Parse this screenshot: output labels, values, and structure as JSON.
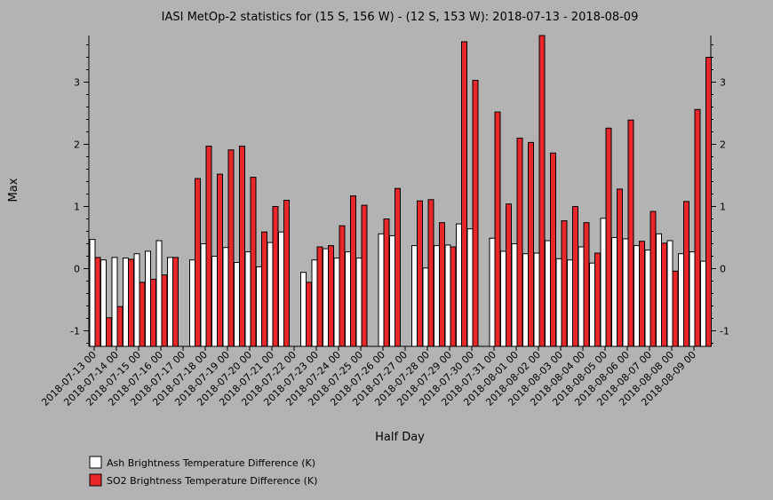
{
  "chart_data": {
    "type": "bar",
    "title": "IASI MetOp-2 statistics for (15 S, 156 W) - (12 S, 153 W): 2018-07-13 - 2018-08-09",
    "xlabel": "Half Day",
    "ylabel": "Max",
    "ylim": [
      -1.25,
      3.75
    ],
    "yticks": [
      -1,
      0,
      1,
      2,
      3
    ],
    "grid": false,
    "legend_position": "bottom-left",
    "x_tick_labels": [
      "2018-07-13 00",
      "2018-07-14 00",
      "2018-07-15 00",
      "2018-07-16 00",
      "2018-07-17 00",
      "2018-07-18 00",
      "2018-07-19 00",
      "2018-07-20 00",
      "2018-07-21 00",
      "2018-07-22 00",
      "2018-07-23 00",
      "2018-07-24 00",
      "2018-07-25 00",
      "2018-07-26 00",
      "2018-07-27 00",
      "2018-07-28 00",
      "2018-07-29 00",
      "2018-07-30 00",
      "2018-07-31 00",
      "2018-08-01 00",
      "2018-08-02 00",
      "2018-08-03 00",
      "2018-08-04 00",
      "2018-08-05 00",
      "2018-08-06 00",
      "2018-08-07 00",
      "2018-08-08 00",
      "2018-08-09 00"
    ],
    "series": [
      {
        "name": "Ash Brightness Temperature Difference (K)",
        "color": "#ffffff",
        "values": [
          0.47,
          0.14,
          0.18,
          0.17,
          0.24,
          0.28,
          0.45,
          0.18,
          null,
          0.14,
          0.4,
          0.2,
          0.34,
          0.1,
          0.27,
          0.03,
          0.42,
          0.59,
          null,
          -0.06,
          0.14,
          0.32,
          0.17,
          0.27,
          0.17,
          null,
          0.56,
          0.53,
          null,
          0.37,
          0.01,
          0.37,
          0.38,
          0.72,
          0.64,
          null,
          0.49,
          0.28,
          0.4,
          0.24,
          0.25,
          0.45,
          0.16,
          0.14,
          0.35,
          0.09,
          0.81,
          0.5,
          0.48,
          0.37,
          0.3,
          0.56,
          0.45,
          0.24,
          0.27,
          0.12
        ]
      },
      {
        "name": "SO2 Brightness Temperature Difference (K)",
        "color": "#e8272b",
        "values": [
          0.18,
          -0.79,
          -0.61,
          0.15,
          -0.22,
          -0.17,
          -0.1,
          0.18,
          null,
          1.45,
          1.97,
          1.52,
          1.91,
          1.97,
          1.47,
          0.59,
          1.0,
          1.1,
          null,
          -0.22,
          0.35,
          0.37,
          0.69,
          1.17,
          1.02,
          null,
          0.8,
          1.29,
          null,
          1.09,
          1.11,
          0.74,
          0.35,
          3.65,
          3.03,
          null,
          2.52,
          1.04,
          2.1,
          2.03,
          3.75,
          1.86,
          0.77,
          1.0,
          0.74,
          0.25,
          2.26,
          1.28,
          2.39,
          0.44,
          0.92,
          0.41,
          -0.04,
          1.08,
          2.56,
          3.4
        ]
      }
    ]
  }
}
